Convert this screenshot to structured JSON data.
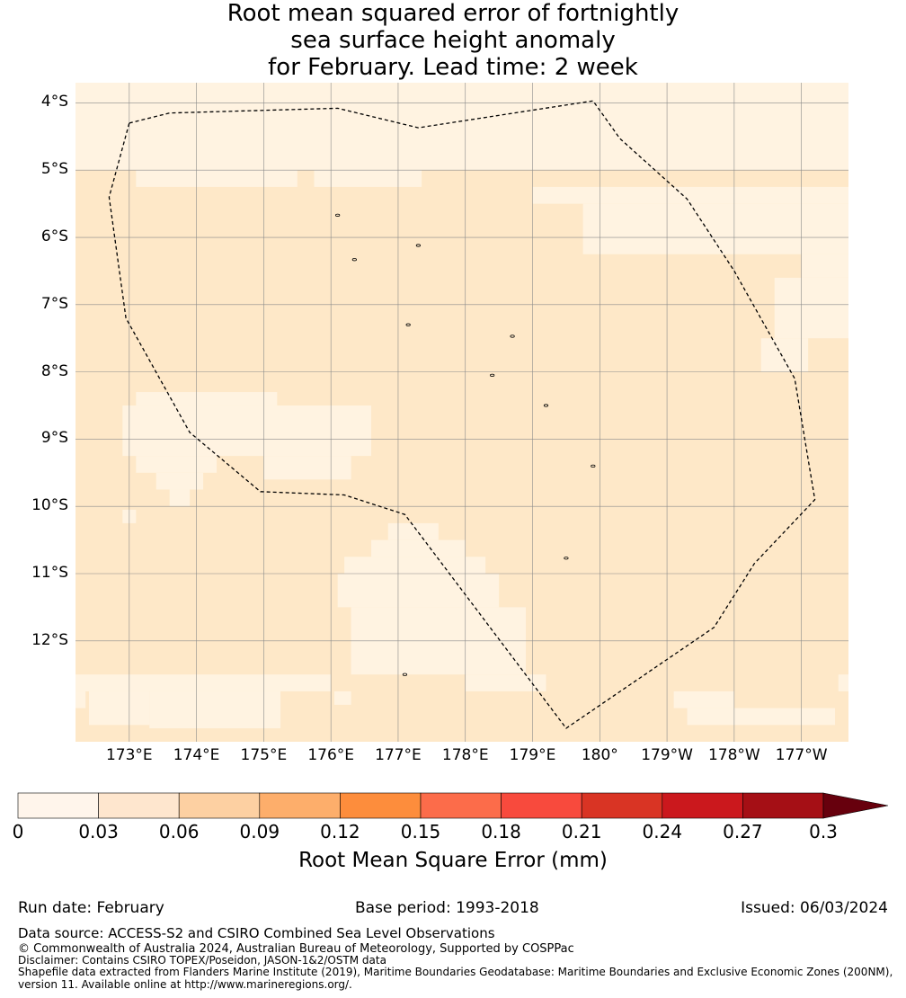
{
  "title": {
    "line1": "Root mean squared error of fortnightly",
    "line2": "sea surface height anomaly",
    "line3": "for February. Lead time: 2 week"
  },
  "map": {
    "lat_labels": [
      "4°S",
      "5°S",
      "6°S",
      "7°S",
      "8°S",
      "9°S",
      "10°S",
      "11°S",
      "12°S"
    ],
    "lat_values": [
      -4,
      -5,
      -6,
      -7,
      -8,
      -9,
      -10,
      -11,
      -12
    ],
    "lon_labels": [
      "173°E",
      "174°E",
      "175°E",
      "176°E",
      "177°E",
      "178°E",
      "179°E",
      "180°",
      "179°W",
      "178°W",
      "177°W"
    ],
    "lon_values": [
      173,
      174,
      175,
      176,
      177,
      178,
      179,
      180,
      181,
      182,
      183
    ],
    "extent": {
      "lon_min": 172.2,
      "lon_max": 183.7,
      "lat_min": -13.5,
      "lat_max": -3.7
    },
    "colors": {
      "bin_0_003": "#fff3e1",
      "bin_003_006": "#fee8c8",
      "boundary": "#000000",
      "grid": "#808080"
    },
    "eez_boundary_lonlat": [
      [
        173.0,
        -4.3
      ],
      [
        173.6,
        -4.15
      ],
      [
        176.1,
        -4.08
      ],
      [
        177.3,
        -4.37
      ],
      [
        179.9,
        -3.97
      ],
      [
        180.3,
        -4.53
      ],
      [
        181.3,
        -5.43
      ],
      [
        182.0,
        -6.5
      ],
      [
        182.9,
        -8.1
      ],
      [
        183.2,
        -9.9
      ],
      [
        182.3,
        -10.85
      ],
      [
        181.7,
        -11.8
      ],
      [
        179.5,
        -13.3
      ],
      [
        177.1,
        -10.12
      ],
      [
        176.2,
        -9.83
      ],
      [
        174.95,
        -9.78
      ],
      [
        173.9,
        -8.9
      ],
      [
        172.95,
        -7.2
      ],
      [
        172.7,
        -5.4
      ]
    ],
    "islands_lonlat": [
      [
        176.1,
        -5.67
      ],
      [
        176.35,
        -6.33
      ],
      [
        177.3,
        -6.12
      ],
      [
        177.15,
        -7.3
      ],
      [
        178.7,
        -7.47
      ],
      [
        178.4,
        -8.05
      ],
      [
        179.2,
        -8.5
      ],
      [
        179.9,
        -9.4
      ],
      [
        179.5,
        -10.77
      ],
      [
        177.1,
        -12.5
      ]
    ],
    "rmse_cells_003_006": {
      "description": "regions in the 0.03-0.06 bin, as lon/lat rectangles [lon0, lat_top, lon1, lat_bottom]",
      "rects": [
        [
          172.2,
          -5.0,
          183.7,
          -13.5
        ]
      ],
      "low_rects": [
        [
          172.2,
          -3.7,
          183.7,
          -5.0
        ],
        [
          173.1,
          -5.0,
          175.5,
          -5.25
        ],
        [
          175.75,
          -5.0,
          177.35,
          -5.25
        ],
        [
          179.0,
          -5.25,
          183.7,
          -5.5
        ],
        [
          179.75,
          -5.5,
          183.7,
          -6.25
        ],
        [
          183.0,
          -6.25,
          183.7,
          -6.6
        ],
        [
          182.6,
          -6.6,
          183.7,
          -7.5
        ],
        [
          182.4,
          -7.5,
          183.1,
          -8.0
        ],
        [
          172.9,
          -8.5,
          176.6,
          -9.25
        ],
        [
          173.1,
          -8.3,
          175.2,
          -8.5
        ],
        [
          173.1,
          -9.25,
          174.3,
          -9.5
        ],
        [
          175.0,
          -9.25,
          176.3,
          -9.6
        ],
        [
          173.4,
          -9.5,
          174.1,
          -9.75
        ],
        [
          173.6,
          -9.75,
          173.9,
          -10.0
        ],
        [
          172.9,
          -10.05,
          173.1,
          -10.25
        ],
        [
          176.85,
          -10.25,
          177.6,
          -10.5
        ],
        [
          176.6,
          -10.5,
          178.0,
          -10.75
        ],
        [
          176.2,
          -10.75,
          178.3,
          -11.0
        ],
        [
          176.1,
          -11.0,
          178.5,
          -11.5
        ],
        [
          176.3,
          -11.5,
          178.9,
          -12.5
        ],
        [
          178.0,
          -12.5,
          179.2,
          -12.75
        ],
        [
          172.2,
          -12.5,
          176.0,
          -12.75
        ],
        [
          172.4,
          -12.75,
          173.3,
          -13.25
        ],
        [
          172.2,
          -12.75,
          172.35,
          -13.0
        ],
        [
          173.3,
          -12.75,
          175.25,
          -13.3
        ],
        [
          176.05,
          -12.75,
          176.3,
          -12.95
        ],
        [
          181.1,
          -12.75,
          182.0,
          -13.0
        ],
        [
          181.3,
          -13.0,
          183.5,
          -13.25
        ],
        [
          183.55,
          -12.5,
          183.7,
          -12.75
        ]
      ]
    }
  },
  "colorbar": {
    "ticks": [
      "0",
      "0.03",
      "0.06",
      "0.09",
      "0.12",
      "0.15",
      "0.18",
      "0.21",
      "0.24",
      "0.27",
      "0.3"
    ],
    "colors": [
      "#fff5eb",
      "#fee6ce",
      "#fdd0a2",
      "#fdae6b",
      "#fd8d3c",
      "#fc6c4a",
      "#f84a3d",
      "#d93424",
      "#cb181d",
      "#a50f15",
      "#67000d"
    ],
    "label": "Root Mean Square Error (mm)"
  },
  "footer": {
    "run_date": "Run date: February",
    "base_period": "Base period: 1993-2018",
    "issued": "Issued: 06/03/2024",
    "data_source": "Data source: ACCESS-S2 and CSIRO Combined Sea Level Observations",
    "copyright": "© Commonwealth of Australia 2024, Australian Bureau of Meteorology, Supported by COSPPac",
    "disclaimer": "Disclaimer: Contains CSIRO TOPEX/Poseidon, JASON-1&2/OSTM data",
    "shapefile_line1": "Shapefile data extracted from Flanders Marine Institute (2019), Maritime Boundaries Geodatabase: Maritime Boundaries and Exclusive Economic Zones (200NM),",
    "shapefile_line2": "version 11. Available online at http://www.marineregions.org/."
  }
}
